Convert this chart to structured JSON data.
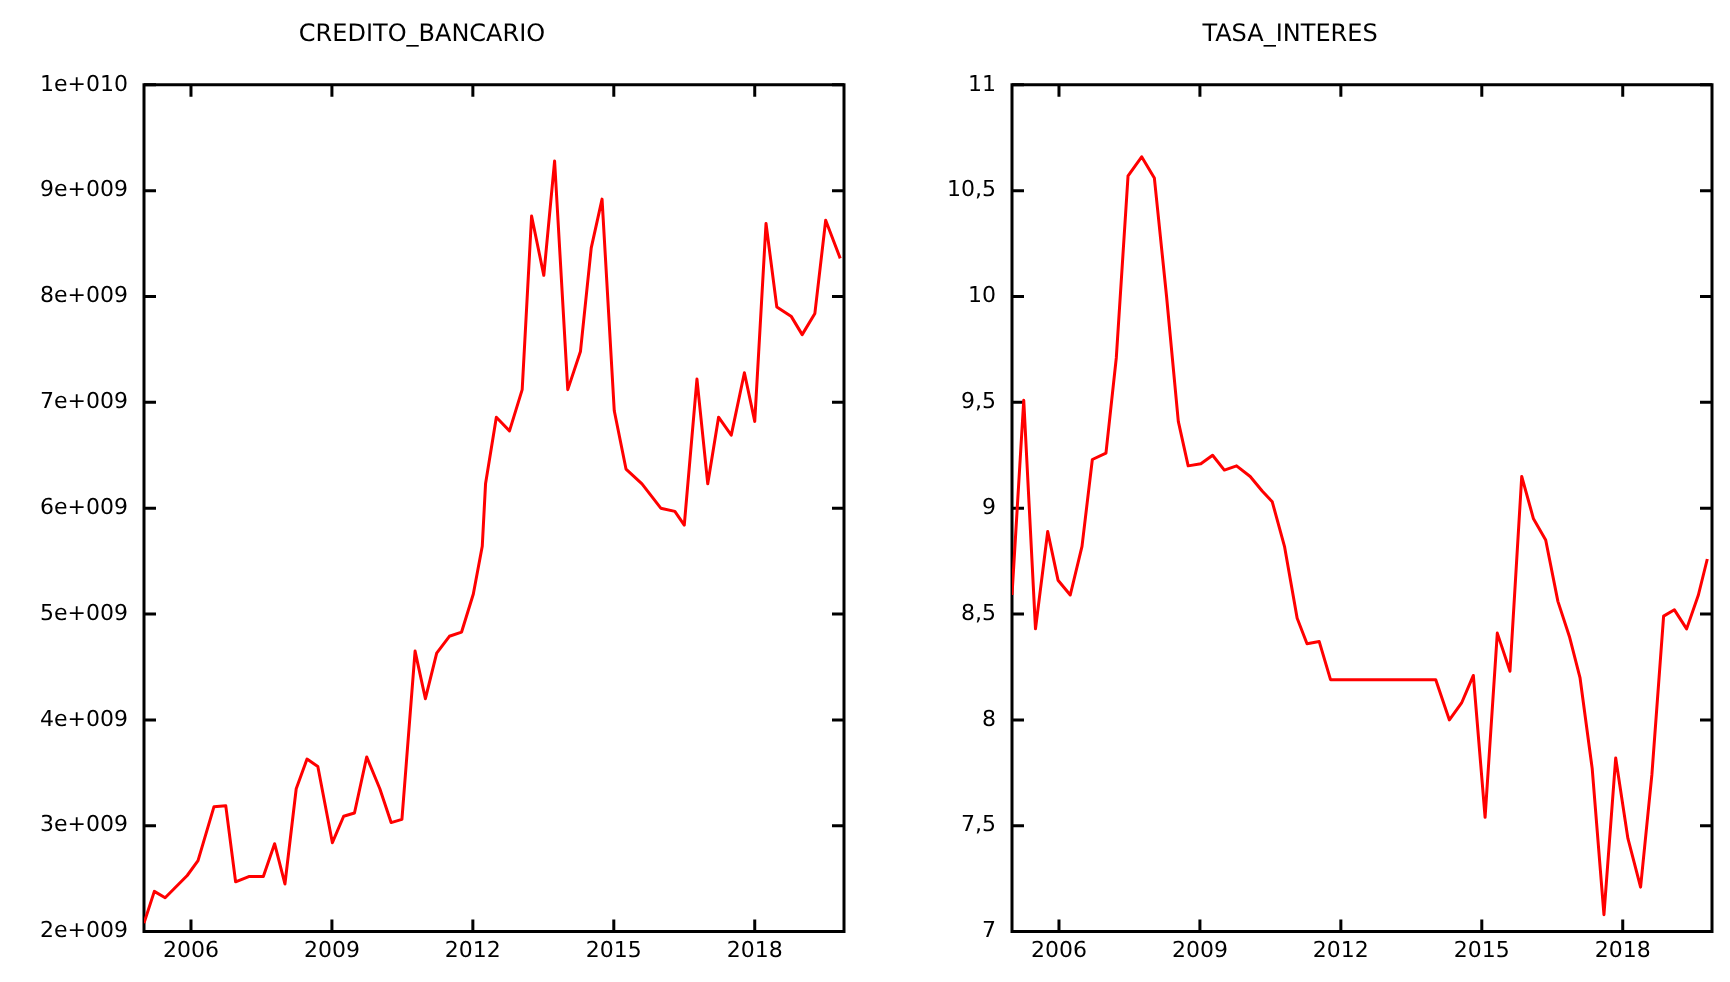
{
  "chart_data": [
    {
      "type": "line",
      "title": "CREDITO_BANCARIO",
      "x": [
        2005.0,
        2005.22,
        2005.45,
        2005.92,
        2006.15,
        2006.49,
        2006.74,
        2006.95,
        2007.23,
        2007.54,
        2007.78,
        2008.0,
        2008.24,
        2008.47,
        2008.7,
        2009.01,
        2009.25,
        2009.48,
        2009.74,
        2010.02,
        2010.26,
        2010.49,
        2010.77,
        2010.99,
        2011.23,
        2011.5,
        2011.76,
        2012.01,
        2012.2,
        2012.27,
        2012.5,
        2012.78,
        2013.05,
        2013.25,
        2013.51,
        2013.74,
        2014.02,
        2014.29,
        2014.52,
        2014.75,
        2015.01,
        2015.26,
        2015.6,
        2016.0,
        2016.3,
        2016.5,
        2016.77,
        2017.0,
        2017.23,
        2017.5,
        2017.78,
        2018.0,
        2018.24,
        2018.47,
        2018.78,
        2019.01,
        2019.28,
        2019.51,
        2019.82
      ],
      "series": [
        {
          "color": "#ff0000",
          "values": [
            2080000000,
            2380000000,
            2320000000,
            2530000000,
            2670000000,
            3180000000,
            3190000000,
            2470000000,
            2520000000,
            2520000000,
            2830000000,
            2450000000,
            3350000000,
            3630000000,
            3560000000,
            2840000000,
            3090000000,
            3120000000,
            3650000000,
            3350000000,
            3030000000,
            3060000000,
            4650000000,
            4200000000,
            4630000000,
            4790000000,
            4830000000,
            5190000000,
            5640000000,
            6230000000,
            6860000000,
            6730000000,
            7120000000,
            8760000000,
            8200000000,
            9280000000,
            7120000000,
            7480000000,
            8460000000,
            8920000000,
            6920000000,
            6370000000,
            6230000000,
            6000000000,
            5970000000,
            5840000000,
            7220000000,
            6230000000,
            6860000000,
            6690000000,
            7280000000,
            6820000000,
            8690000000,
            7900000000,
            7810000000,
            7640000000,
            7840000000,
            8720000000,
            8360000000
          ]
        }
      ],
      "xlim": [
        2005,
        2019.9
      ],
      "xticks": [
        2006,
        2009,
        2012,
        2015,
        2018
      ],
      "ylim": [
        2000000000,
        10000000000
      ],
      "yticks": [
        {
          "value": 2000000000,
          "label": "2e+009"
        },
        {
          "value": 3000000000,
          "label": "3e+009"
        },
        {
          "value": 4000000000,
          "label": "4e+009"
        },
        {
          "value": 5000000000,
          "label": "5e+009"
        },
        {
          "value": 6000000000,
          "label": "6e+009"
        },
        {
          "value": 7000000000,
          "label": "7e+009"
        },
        {
          "value": 8000000000,
          "label": "8e+009"
        },
        {
          "value": 9000000000,
          "label": "9e+009"
        },
        {
          "value": 10000000000,
          "label": "1e+010"
        }
      ],
      "grid": false,
      "legend": false,
      "marker": "none",
      "line_style": "solid"
    },
    {
      "type": "line",
      "title": "TASA_INTERES",
      "x": [
        2005.0,
        2005.25,
        2005.5,
        2005.76,
        2005.98,
        2006.24,
        2006.49,
        2006.71,
        2007.0,
        2007.22,
        2007.47,
        2007.76,
        2008.03,
        2008.29,
        2008.54,
        2008.75,
        2009.02,
        2009.27,
        2009.52,
        2009.78,
        2010.07,
        2010.33,
        2010.54,
        2010.8,
        2011.07,
        2011.28,
        2011.54,
        2011.78,
        2014.02,
        2014.31,
        2014.57,
        2014.82,
        2015.07,
        2015.33,
        2015.6,
        2015.85,
        2016.1,
        2016.36,
        2016.62,
        2016.87,
        2017.09,
        2017.35,
        2017.6,
        2017.85,
        2018.11,
        2018.38,
        2018.62,
        2018.87,
        2019.1,
        2019.36,
        2019.61,
        2019.8
      ],
      "series": [
        {
          "color": "#ff0000",
          "values": [
            8.59,
            9.51,
            8.43,
            8.89,
            8.66,
            8.59,
            8.82,
            9.23,
            9.26,
            9.71,
            10.57,
            10.66,
            10.56,
            10.0,
            9.41,
            9.2,
            9.21,
            9.25,
            9.18,
            9.2,
            9.15,
            9.08,
            9.03,
            8.82,
            8.48,
            8.36,
            8.37,
            8.19,
            8.19,
            8.0,
            8.08,
            8.21,
            7.54,
            8.41,
            8.23,
            9.15,
            8.95,
            8.85,
            8.56,
            8.39,
            8.2,
            7.77,
            7.08,
            7.82,
            7.44,
            7.21,
            7.74,
            8.49,
            8.52,
            8.43,
            8.59,
            8.76
          ]
        }
      ],
      "xlim": [
        2005,
        2019.9
      ],
      "xticks": [
        2006,
        2009,
        2012,
        2015,
        2018
      ],
      "ylim": [
        7,
        11
      ],
      "yticks": [
        7,
        {
          "value": 7.5,
          "label": "7,5"
        },
        8,
        {
          "value": 8.5,
          "label": "8,5"
        },
        9,
        {
          "value": 9.5,
          "label": "9,5"
        },
        10,
        {
          "value": 10.5,
          "label": "10,5"
        },
        11
      ],
      "grid": false,
      "legend": false,
      "marker": "none",
      "line_style": "solid"
    }
  ]
}
